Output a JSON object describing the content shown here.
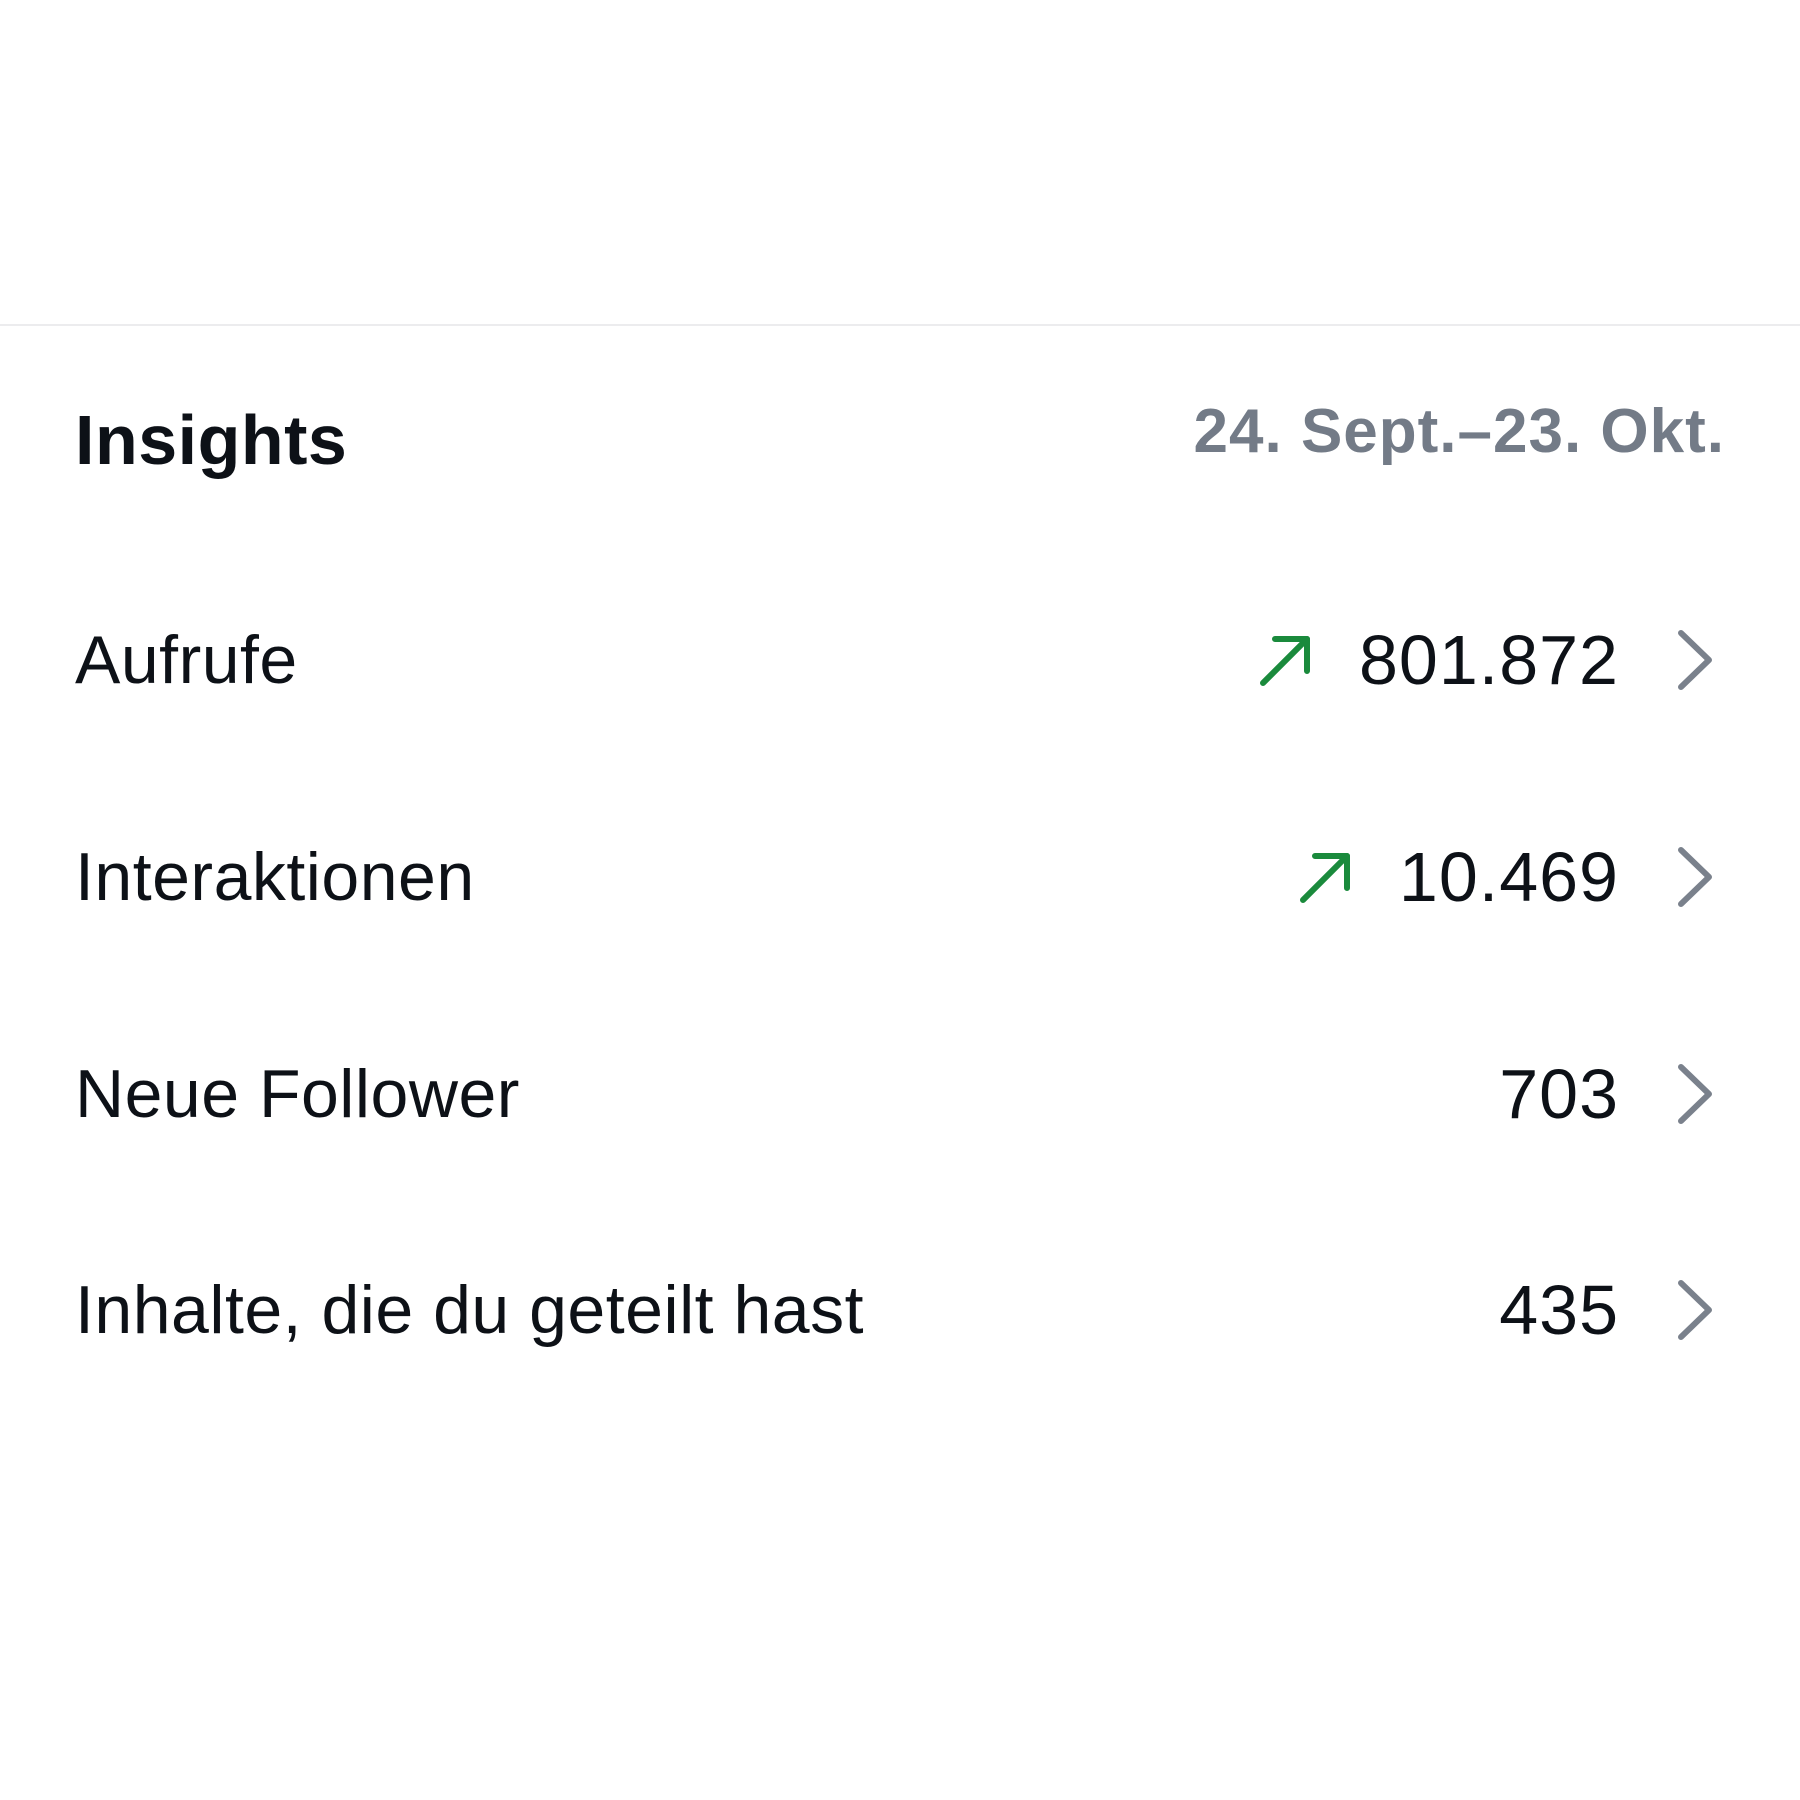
{
  "insights": {
    "title": "Insights",
    "date_range": "24. Sept.–23. Okt.",
    "rows": [
      {
        "label": "Aufrufe",
        "value": "801.872",
        "trend": "up-arrow-icon"
      },
      {
        "label": "Interaktionen",
        "value": "10.469",
        "trend": "up-arrow-icon"
      },
      {
        "label": "Neue Follower",
        "value": "703",
        "trend": null
      },
      {
        "label": "Inhalte, die du geteilt hast",
        "value": "435",
        "trend": null
      }
    ]
  },
  "colors": {
    "trend_up": "#1a8a3c",
    "secondary_text": "#737b87",
    "chevron": "#7a818c",
    "primary_text": "#0d1117"
  }
}
